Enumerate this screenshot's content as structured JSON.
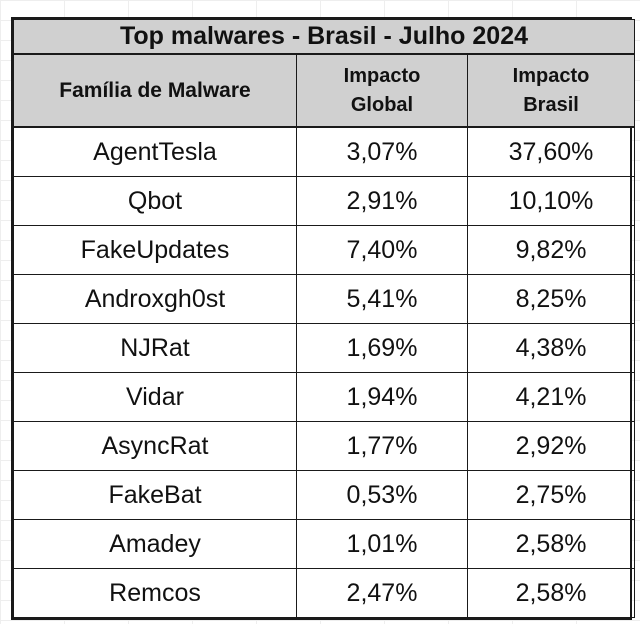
{
  "table": {
    "title": "Top malwares - Brasil - Julho 2024",
    "headers": {
      "family": "Família de Malware",
      "global_line1": "Impacto",
      "global_line2": "Global",
      "brasil_line1": "Impacto",
      "brasil_line2": "Brasil"
    },
    "rows": [
      {
        "family": "AgentTesla",
        "global": "3,07%",
        "brasil": "37,60%"
      },
      {
        "family": "Qbot",
        "global": "2,91%",
        "brasil": "10,10%"
      },
      {
        "family": "FakeUpdates",
        "global": "7,40%",
        "brasil": "9,82%"
      },
      {
        "family": "Androxgh0st",
        "global": "5,41%",
        "brasil": "8,25%"
      },
      {
        "family": "NJRat",
        "global": "1,69%",
        "brasil": "4,38%"
      },
      {
        "family": "Vidar",
        "global": "1,94%",
        "brasil": "4,21%"
      },
      {
        "family": "AsyncRat",
        "global": "1,77%",
        "brasil": "2,92%"
      },
      {
        "family": "FakeBat",
        "global": "0,53%",
        "brasil": "2,75%"
      },
      {
        "family": "Amadey",
        "global": "1,01%",
        "brasil": "2,58%"
      },
      {
        "family": "Remcos",
        "global": "2,47%",
        "brasil": "2,58%"
      }
    ]
  }
}
